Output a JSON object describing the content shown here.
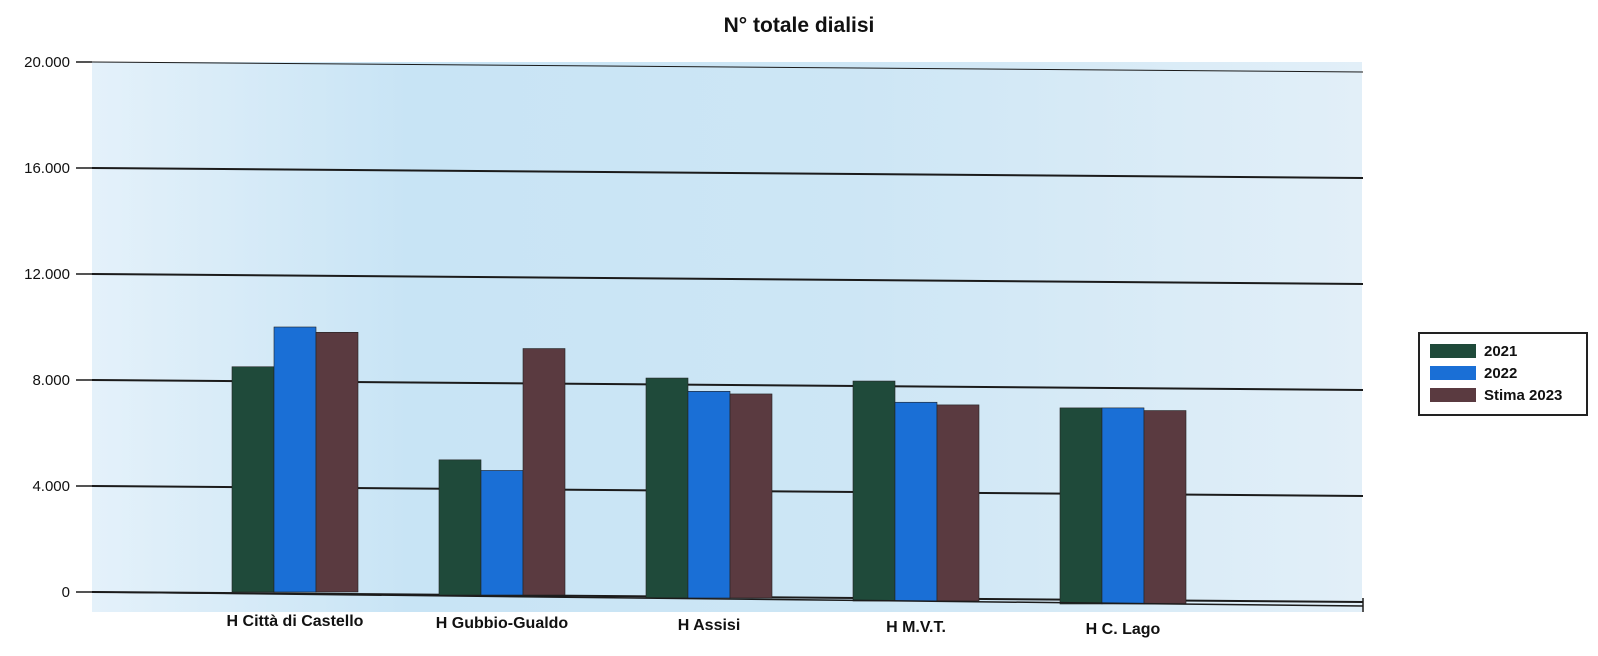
{
  "chart_data": {
    "type": "bar",
    "title": "N° totale dialisi",
    "categories": [
      "H Città di Castello",
      "H Gubbio-Gualdo",
      "H Assisi",
      "H M.V.T.",
      "H C. Lago"
    ],
    "series": [
      {
        "name": "2021",
        "values": [
          8500,
          5100,
          8300,
          8300,
          7400
        ],
        "color": "#1f4a3a"
      },
      {
        "name": "2022",
        "values": [
          10000,
          4700,
          7800,
          7500,
          7400
        ],
        "color": "#1a6fd6"
      },
      {
        "name": "Stima 2023",
        "values": [
          9800,
          9300,
          7700,
          7400,
          7300
        ],
        "color": "#5a3a40"
      }
    ],
    "yticks": [
      "0",
      "4.000",
      "8.000",
      "12.000",
      "16.000",
      "20.000"
    ],
    "ylim": [
      0,
      20000
    ],
    "grid": true,
    "legend_position": "right"
  }
}
